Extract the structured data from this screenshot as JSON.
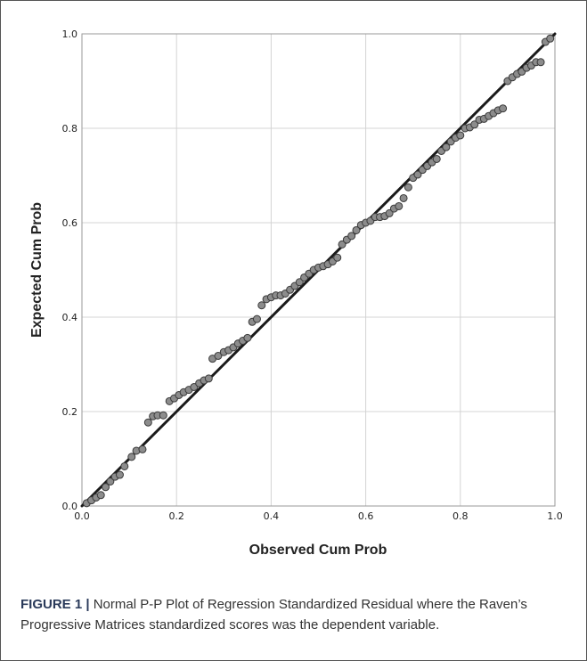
{
  "chart_data": {
    "type": "scatter",
    "title": "",
    "xlabel": "Observed Cum Prob",
    "ylabel": "Expected Cum Prob",
    "xlim": [
      0,
      1
    ],
    "ylim": [
      0,
      1
    ],
    "x_ticks": [
      "0.0",
      "0.2",
      "0.4",
      "0.6",
      "0.8",
      "1.0"
    ],
    "y_ticks": [
      "0.0",
      "0.2",
      "0.4",
      "0.6",
      "0.8",
      "1.0"
    ],
    "grid": true,
    "reference_line": [
      [
        0,
        0
      ],
      [
        1,
        1
      ]
    ],
    "colors": {
      "point_fill": "#8c8c8c",
      "point_stroke": "#3a3a3a",
      "line": "#1a1a1a",
      "grid": "#d4d4d4"
    },
    "points": [
      [
        0.01,
        0.006
      ],
      [
        0.02,
        0.012
      ],
      [
        0.03,
        0.018
      ],
      [
        0.04,
        0.023
      ],
      [
        0.05,
        0.04
      ],
      [
        0.06,
        0.052
      ],
      [
        0.07,
        0.062
      ],
      [
        0.08,
        0.066
      ],
      [
        0.09,
        0.084
      ],
      [
        0.105,
        0.104
      ],
      [
        0.115,
        0.117
      ],
      [
        0.128,
        0.12
      ],
      [
        0.14,
        0.177
      ],
      [
        0.15,
        0.19
      ],
      [
        0.16,
        0.192
      ],
      [
        0.172,
        0.192
      ],
      [
        0.185,
        0.222
      ],
      [
        0.195,
        0.228
      ],
      [
        0.205,
        0.235
      ],
      [
        0.215,
        0.241
      ],
      [
        0.226,
        0.246
      ],
      [
        0.237,
        0.252
      ],
      [
        0.248,
        0.26
      ],
      [
        0.258,
        0.266
      ],
      [
        0.268,
        0.27
      ],
      [
        0.276,
        0.312
      ],
      [
        0.288,
        0.318
      ],
      [
        0.3,
        0.326
      ],
      [
        0.31,
        0.33
      ],
      [
        0.32,
        0.336
      ],
      [
        0.33,
        0.344
      ],
      [
        0.34,
        0.35
      ],
      [
        0.35,
        0.356
      ],
      [
        0.36,
        0.39
      ],
      [
        0.37,
        0.396
      ],
      [
        0.38,
        0.425
      ],
      [
        0.39,
        0.438
      ],
      [
        0.4,
        0.442
      ],
      [
        0.41,
        0.446
      ],
      [
        0.42,
        0.446
      ],
      [
        0.43,
        0.45
      ],
      [
        0.44,
        0.458
      ],
      [
        0.45,
        0.466
      ],
      [
        0.46,
        0.474
      ],
      [
        0.47,
        0.484
      ],
      [
        0.48,
        0.492
      ],
      [
        0.49,
        0.5
      ],
      [
        0.5,
        0.505
      ],
      [
        0.51,
        0.508
      ],
      [
        0.52,
        0.512
      ],
      [
        0.53,
        0.518
      ],
      [
        0.54,
        0.526
      ],
      [
        0.55,
        0.554
      ],
      [
        0.56,
        0.564
      ],
      [
        0.57,
        0.572
      ],
      [
        0.58,
        0.584
      ],
      [
        0.59,
        0.595
      ],
      [
        0.6,
        0.6
      ],
      [
        0.61,
        0.604
      ],
      [
        0.62,
        0.612
      ],
      [
        0.63,
        0.612
      ],
      [
        0.64,
        0.614
      ],
      [
        0.65,
        0.62
      ],
      [
        0.66,
        0.63
      ],
      [
        0.67,
        0.635
      ],
      [
        0.68,
        0.652
      ],
      [
        0.69,
        0.675
      ],
      [
        0.7,
        0.695
      ],
      [
        0.71,
        0.702
      ],
      [
        0.72,
        0.712
      ],
      [
        0.73,
        0.72
      ],
      [
        0.74,
        0.728
      ],
      [
        0.75,
        0.735
      ],
      [
        0.76,
        0.752
      ],
      [
        0.77,
        0.76
      ],
      [
        0.78,
        0.772
      ],
      [
        0.79,
        0.78
      ],
      [
        0.8,
        0.785
      ],
      [
        0.81,
        0.8
      ],
      [
        0.82,
        0.802
      ],
      [
        0.83,
        0.808
      ],
      [
        0.84,
        0.818
      ],
      [
        0.85,
        0.82
      ],
      [
        0.86,
        0.826
      ],
      [
        0.87,
        0.832
      ],
      [
        0.88,
        0.838
      ],
      [
        0.89,
        0.842
      ],
      [
        0.9,
        0.9
      ],
      [
        0.91,
        0.908
      ],
      [
        0.92,
        0.915
      ],
      [
        0.93,
        0.92
      ],
      [
        0.94,
        0.928
      ],
      [
        0.95,
        0.933
      ],
      [
        0.96,
        0.94
      ],
      [
        0.97,
        0.94
      ],
      [
        0.98,
        0.983
      ],
      [
        0.99,
        0.99
      ]
    ]
  },
  "caption": {
    "label": "FIGURE 1 |",
    "text": " Normal P-P Plot of Regression Standardized Residual where the Raven’s Progressive Matrices standardized scores was the dependent variable."
  }
}
